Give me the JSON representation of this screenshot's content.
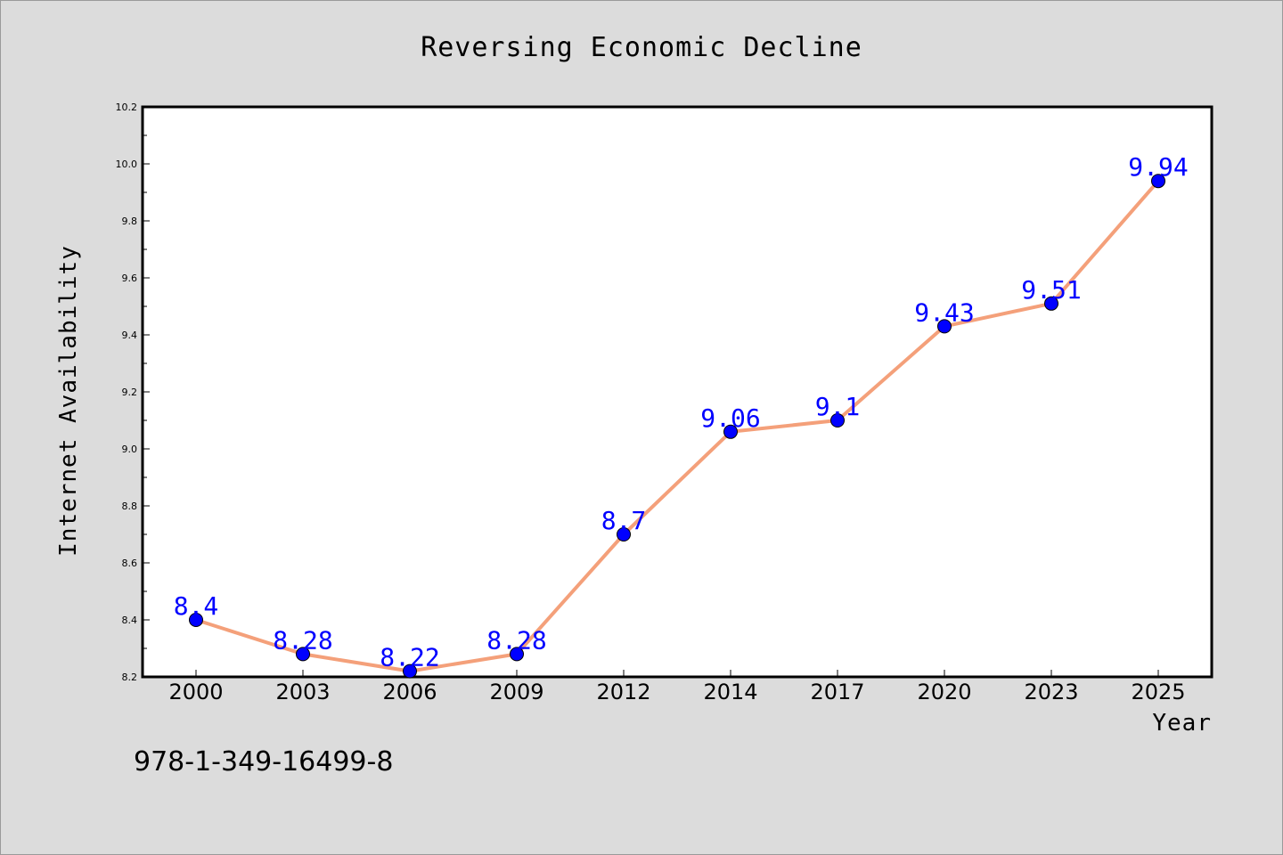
{
  "chart_data": {
    "type": "line",
    "title": "Reversing Economic Decline",
    "xlabel": "Year",
    "ylabel": "Internet Availability",
    "categories": [
      "2000",
      "2003",
      "2006",
      "2009",
      "2012",
      "2014",
      "2017",
      "2020",
      "2023",
      "2025"
    ],
    "series": [
      {
        "values": [
          8.4,
          8.28,
          8.22,
          8.28,
          8.7,
          9.06,
          9.1,
          9.43,
          9.51,
          9.94
        ],
        "data_labels": [
          "8.4",
          "8.28",
          "8.22",
          "8.28",
          "8.7",
          "9.06",
          "9.1",
          "9.43",
          "9.51",
          "9.94"
        ],
        "line_color": "#f4a07a",
        "marker_color": "#0000ff"
      }
    ],
    "ylim": [
      8.2,
      10.2
    ],
    "yticks": [
      "8.2",
      "8.4",
      "8.6",
      "8.8",
      "9.0",
      "9.2",
      "9.4",
      "9.6",
      "9.8",
      "10.0",
      "10.2"
    ],
    "grid": false,
    "legend": "none"
  },
  "footer": {
    "isbn": "978-1-349-16499-8"
  },
  "colors": {
    "background": "#dcdcdc",
    "plot_background": "#ffffff",
    "line": "#f4a07a",
    "marker": "#0000ff",
    "data_label": "#0000ff"
  }
}
